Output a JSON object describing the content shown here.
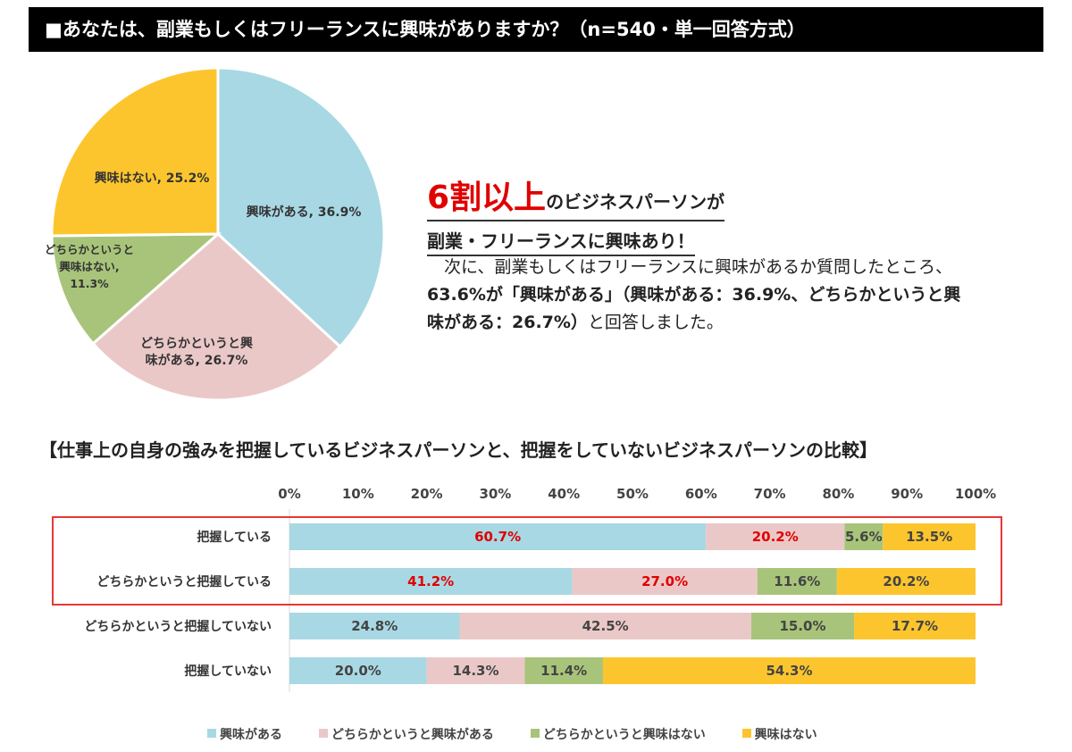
{
  "header": {
    "title": "■あなたは、副業もしくはフリーランスに興味がありますか？（n=540・単一回答方式）"
  },
  "colors": {
    "interested": "#a8d8e4",
    "somewhat_interested": "#ebc8c8",
    "somewhat_not": "#a8c47a",
    "not_interested": "#fdc52d",
    "accent_red": "#e00000"
  },
  "headline": {
    "big": "6割以上",
    "line1_rest": "のビジネスパーソンが",
    "line2": "副業・フリーランスに興味あり！"
  },
  "body": {
    "p1": "　次に、副業もしくはフリーランスに興味があるか質問したところ、",
    "p2_bold": "63.6%が「興味がある」（興味がある：36.9%、どちらかというと興味がある：26.7%）",
    "p3": "と回答しました。"
  },
  "section": {
    "title": "【仕事上の自身の強みを把握しているビジネスパーソンと、把握をしていないビジネスパーソンの比較】"
  },
  "legend": [
    "興味がある",
    "どちらかというと興味がある",
    "どちらかというと興味はない",
    "興味はない"
  ],
  "chart_data": [
    {
      "type": "pie",
      "slices": [
        {
          "label": "興味がある, 36.9%",
          "value": 36.9
        },
        {
          "label": "どちらかというと興味がある, 26.7%",
          "value": 26.7
        },
        {
          "label": "どちらかというと興味はない, 11.3%",
          "value": 11.3
        },
        {
          "label": "興味はない, 25.2%",
          "value": 25.2
        }
      ]
    },
    {
      "type": "bar",
      "orientation": "horizontal",
      "stacked": true,
      "xlim": [
        0,
        100
      ],
      "ticks": [
        "0%",
        "10%",
        "20%",
        "30%",
        "40%",
        "50%",
        "60%",
        "70%",
        "80%",
        "90%",
        "100%"
      ],
      "categories": [
        "把握している",
        "どちらかというと把握している",
        "どちらかというと把握していない",
        "把握していない"
      ],
      "series": [
        {
          "name": "興味がある",
          "values": [
            60.7,
            41.2,
            24.8,
            20.0
          ]
        },
        {
          "name": "どちらかというと興味がある",
          "values": [
            20.2,
            27.0,
            42.5,
            14.3
          ]
        },
        {
          "name": "どちらかというと興味はない",
          "values": [
            5.6,
            11.6,
            15.0,
            11.4
          ]
        },
        {
          "name": "興味はない",
          "values": [
            13.5,
            20.2,
            17.7,
            54.3
          ]
        }
      ]
    }
  ]
}
